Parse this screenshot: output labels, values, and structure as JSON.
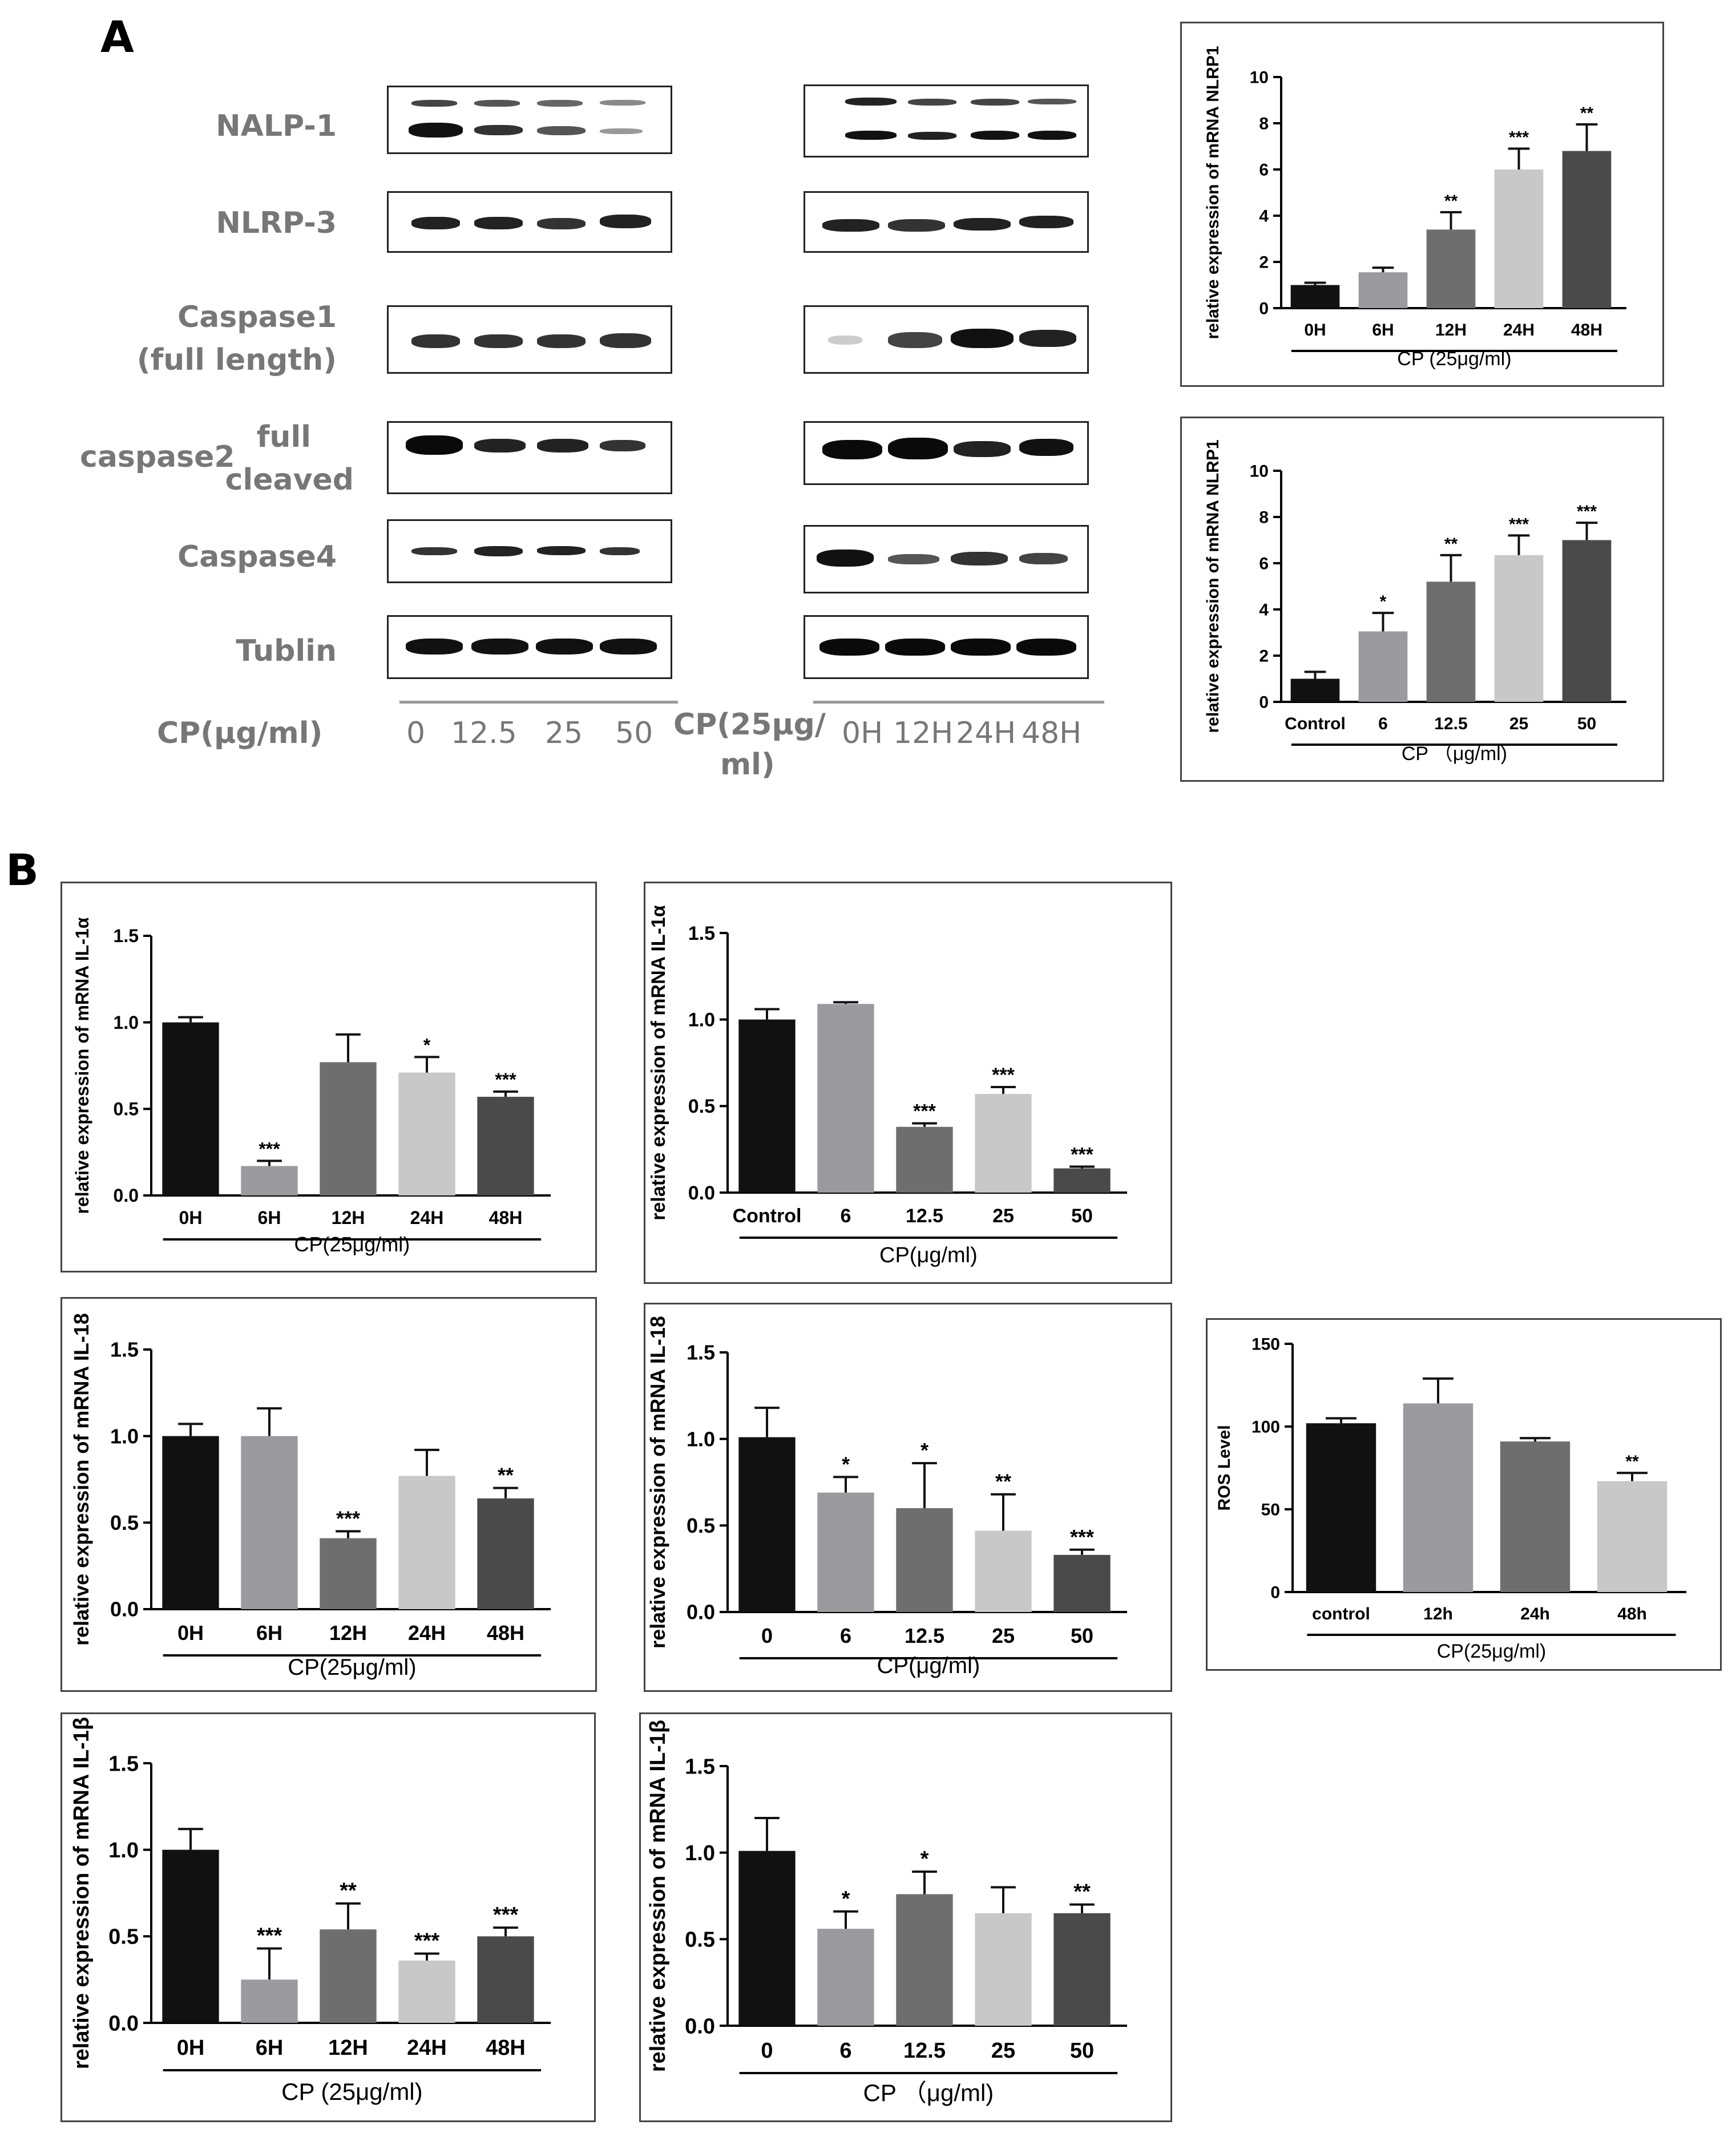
{
  "panels": {
    "a": "A",
    "b": "B"
  },
  "western_blot": {
    "row_labels": [
      "NALP-1",
      "NLRP-3",
      "Caspase1",
      "(full length)",
      "caspase2",
      "full",
      "cleaved",
      "Caspase4",
      "Tublin"
    ],
    "dose_axis": {
      "label": "CP(μg/ml)",
      "ticks": [
        "0",
        "12.5",
        "25",
        "50"
      ]
    },
    "time_axis": {
      "label_line1": "CP(25μg/",
      "label_line2": "ml)",
      "ticks": [
        "0H",
        "12H",
        "24H",
        "48H"
      ]
    }
  },
  "chart_data": [
    {
      "id": "nlrp1_time",
      "type": "bar",
      "ylabel": "relative expression of mRNA NLRP1",
      "xlabel": "CP (25μg/ml)",
      "categories": [
        "0H",
        "6H",
        "12H",
        "24H",
        "48H"
      ],
      "values": [
        1.0,
        1.55,
        3.4,
        6.0,
        6.8
      ],
      "errors": [
        0.1,
        0.2,
        0.75,
        0.9,
        1.15
      ],
      "significance": [
        "",
        "",
        "**",
        "***",
        "**"
      ],
      "ylim": [
        0,
        10
      ],
      "yticks": [
        "0",
        "2",
        "4",
        "6",
        "8",
        "10"
      ],
      "colors": [
        "#111111",
        "#9a9a9f",
        "#6e6e6e",
        "#c8c8c8",
        "#4a4a4a"
      ]
    },
    {
      "id": "nlrp1_dose",
      "type": "bar",
      "ylabel": "relative expression of mRNA NLRP1",
      "xlabel": "CP （μg/ml)",
      "categories": [
        "Control",
        "6",
        "12.5",
        "25",
        "50"
      ],
      "values": [
        1.0,
        3.05,
        5.2,
        6.35,
        7.0
      ],
      "errors": [
        0.3,
        0.8,
        1.15,
        0.85,
        0.75
      ],
      "significance": [
        "",
        "*",
        "**",
        "***",
        "***"
      ],
      "ylim": [
        0,
        10
      ],
      "yticks": [
        "0",
        "2",
        "4",
        "6",
        "8",
        "10"
      ],
      "colors": [
        "#111111",
        "#9a9a9f",
        "#6e6e6e",
        "#c8c8c8",
        "#4a4a4a"
      ]
    },
    {
      "id": "il1a_time",
      "type": "bar",
      "ylabel": "relative expression of mRNA IL-1α",
      "xlabel": "CP(25μg/ml)",
      "categories": [
        "0H",
        "6H",
        "12H",
        "24H",
        "48H"
      ],
      "values": [
        1.0,
        0.17,
        0.77,
        0.71,
        0.57
      ],
      "errors": [
        0.03,
        0.03,
        0.16,
        0.09,
        0.03
      ],
      "significance": [
        "",
        "***",
        "",
        "*",
        "***"
      ],
      "ylim": [
        0,
        1.5
      ],
      "yticks": [
        "0.0",
        "0.5",
        "1.0",
        "1.5"
      ],
      "colors": [
        "#111111",
        "#9a9a9f",
        "#6e6e6e",
        "#c8c8c8",
        "#4a4a4a"
      ]
    },
    {
      "id": "il1a_dose",
      "type": "bar",
      "ylabel": "relative expression of mRNA IL-1α",
      "xlabel": "CP(μg/ml)",
      "categories": [
        "Control",
        "6",
        "12.5",
        "25",
        "50"
      ],
      "values": [
        1.0,
        1.09,
        0.38,
        0.57,
        0.14
      ],
      "errors": [
        0.06,
        0.01,
        0.02,
        0.04,
        0.01
      ],
      "significance": [
        "",
        "",
        "***",
        "***",
        "***"
      ],
      "ylim": [
        0,
        1.5
      ],
      "yticks": [
        "0.0",
        "0.5",
        "1.0",
        "1.5"
      ],
      "colors": [
        "#111111",
        "#9a9a9f",
        "#6e6e6e",
        "#c8c8c8",
        "#4a4a4a"
      ]
    },
    {
      "id": "il18_time",
      "type": "bar",
      "ylabel": "relative expression of mRNA IL-18",
      "xlabel": "CP(25μg/ml)",
      "categories": [
        "0H",
        "6H",
        "12H",
        "24H",
        "48H"
      ],
      "values": [
        1.0,
        1.0,
        0.41,
        0.77,
        0.64
      ],
      "errors": [
        0.07,
        0.16,
        0.04,
        0.15,
        0.06
      ],
      "significance": [
        "",
        "",
        "***",
        "",
        "**"
      ],
      "ylim": [
        0,
        1.5
      ],
      "yticks": [
        "0.0",
        "0.5",
        "1.0",
        "1.5"
      ],
      "colors": [
        "#111111",
        "#9a9a9f",
        "#6e6e6e",
        "#c8c8c8",
        "#4a4a4a"
      ]
    },
    {
      "id": "il18_dose",
      "type": "bar",
      "ylabel": "relative expression of mRNA IL-18",
      "xlabel": "CP(μg/ml)",
      "categories": [
        "0",
        "6",
        "12.5",
        "25",
        "50"
      ],
      "values": [
        1.01,
        0.69,
        0.6,
        0.47,
        0.33
      ],
      "errors": [
        0.17,
        0.09,
        0.26,
        0.21,
        0.03
      ],
      "significance": [
        "",
        "*",
        "*",
        "**",
        "***"
      ],
      "ylim": [
        0,
        1.5
      ],
      "yticks": [
        "0.0",
        "0.5",
        "1.0",
        "1.5"
      ],
      "colors": [
        "#111111",
        "#9a9a9f",
        "#6e6e6e",
        "#c8c8c8",
        "#4a4a4a"
      ]
    },
    {
      "id": "ros_time",
      "type": "bar",
      "ylabel": "ROS Level",
      "xlabel": "CP(25μg/ml)",
      "categories": [
        "control",
        "12h",
        "24h",
        "48h"
      ],
      "values": [
        102,
        114,
        91,
        67
      ],
      "errors": [
        3,
        15,
        2,
        5
      ],
      "significance": [
        "",
        "",
        "",
        "**"
      ],
      "ylim": [
        0,
        150
      ],
      "yticks": [
        "0",
        "50",
        "100",
        "150"
      ],
      "colors": [
        "#111111",
        "#9a9a9f",
        "#6e6e6e",
        "#c8c8c8"
      ]
    },
    {
      "id": "il1b_time",
      "type": "bar",
      "ylabel": "relative expression of mRNA IL-1β",
      "xlabel": "CP (25μg/ml)",
      "categories": [
        "0H",
        "6H",
        "12H",
        "24H",
        "48H"
      ],
      "values": [
        1.0,
        0.25,
        0.54,
        0.36,
        0.5
      ],
      "errors": [
        0.12,
        0.18,
        0.15,
        0.04,
        0.05
      ],
      "significance": [
        "",
        "***",
        "**",
        "***",
        "***"
      ],
      "ylim": [
        0,
        1.5
      ],
      "yticks": [
        "0.0",
        "0.5",
        "1.0",
        "1.5"
      ],
      "colors": [
        "#111111",
        "#9a9a9f",
        "#6e6e6e",
        "#c8c8c8",
        "#4a4a4a"
      ]
    },
    {
      "id": "il1b_dose",
      "type": "bar",
      "ylabel": "relative expression of mRNA IL-1β",
      "xlabel": "CP （μg/ml)",
      "categories": [
        "0",
        "6",
        "12.5",
        "25",
        "50"
      ],
      "values": [
        1.01,
        0.56,
        0.76,
        0.65,
        0.65
      ],
      "errors": [
        0.19,
        0.1,
        0.13,
        0.15,
        0.05
      ],
      "significance": [
        "",
        "*",
        "*",
        "",
        "**"
      ],
      "ylim": [
        0,
        1.5
      ],
      "yticks": [
        "0.0",
        "0.5",
        "1.0",
        "1.5"
      ],
      "colors": [
        "#111111",
        "#9a9a9f",
        "#6e6e6e",
        "#c8c8c8",
        "#4a4a4a"
      ]
    }
  ]
}
